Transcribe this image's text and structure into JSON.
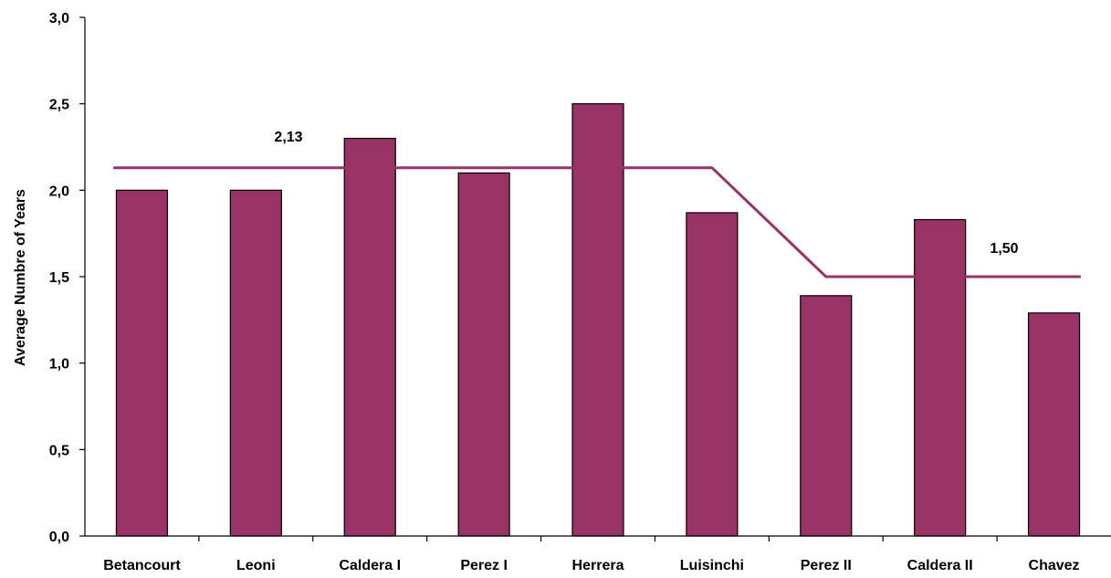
{
  "chart_data": {
    "type": "bar",
    "categories": [
      "Betancourt",
      "Leoni",
      "Caldera I",
      "Perez I",
      "Herrera",
      "Luisinchi",
      "Perez II",
      "Caldera II",
      "Chavez"
    ],
    "values": [
      2.0,
      2.0,
      2.3,
      2.1,
      2.5,
      1.87,
      1.39,
      1.83,
      1.29
    ],
    "ylabel": "Average Numbre of Years",
    "xlabel": "",
    "ylim": [
      0,
      3
    ],
    "yticks": [
      "0,0",
      "0,5",
      "1,0",
      "1,5",
      "2,0",
      "2,5",
      "3,0"
    ],
    "grid": false,
    "bar_color": "#993366",
    "line_color": "#993366",
    "average_line": {
      "values": [
        2.13,
        2.13,
        2.13,
        2.13,
        2.13,
        2.13,
        1.5,
        1.5,
        1.5
      ],
      "annotations": [
        "2,13",
        "1,50"
      ]
    }
  }
}
